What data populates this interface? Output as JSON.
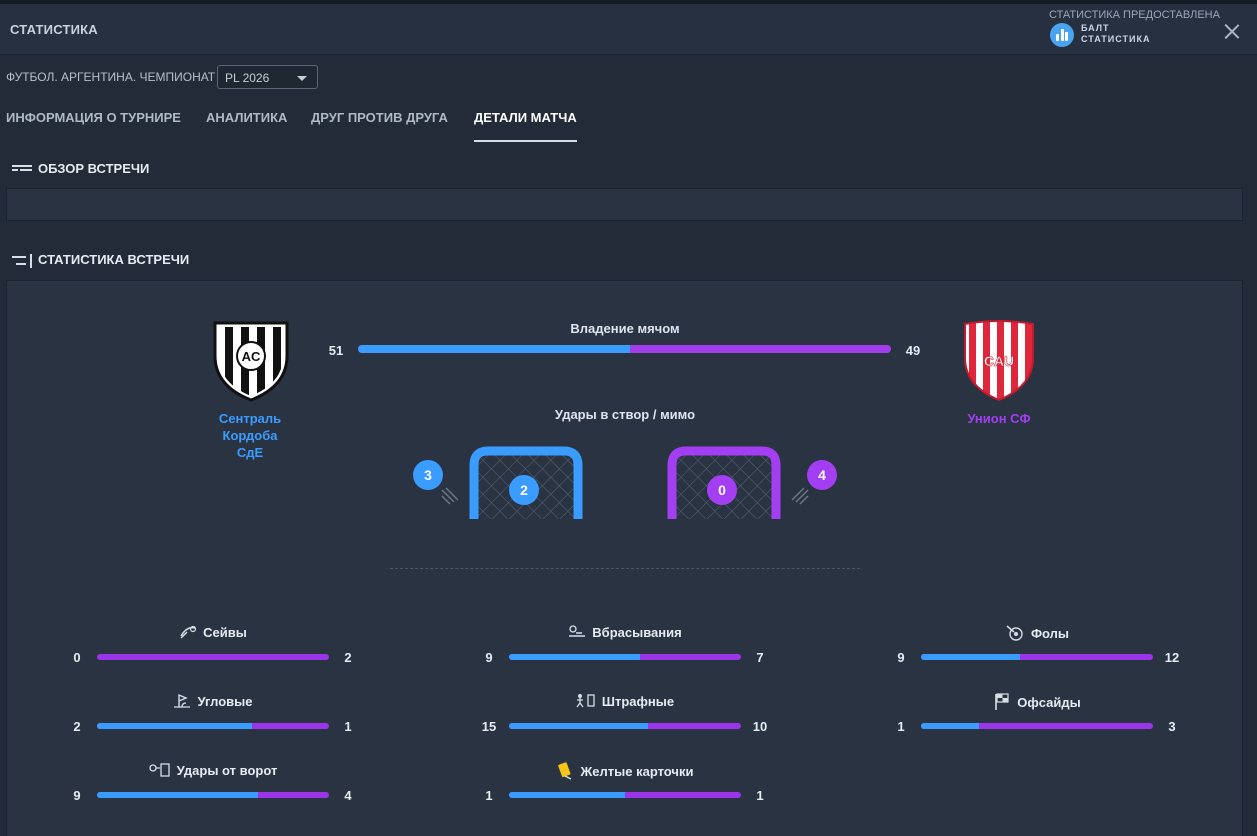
{
  "window": {
    "title": "СТАТИСТИКА",
    "close_icon": "close-icon"
  },
  "provider": {
    "caption": "СТАТИСТИКА ПРЕДОСТАВЛЕНА",
    "name": "БАЛТ СТАТИСТИКА"
  },
  "filter": {
    "label": "ФУТБОЛ. АРГЕНТИНА. ЧЕМПИОНАТ",
    "season_value": "PL 2026"
  },
  "tabs": [
    {
      "label": "ИНФОРМАЦИЯ О ТУРНИРЕ",
      "active": false
    },
    {
      "label": "АНАЛИТИКА",
      "active": false
    },
    {
      "label": "ДРУГ ПРОТИВ ДРУГА",
      "active": false
    },
    {
      "label": "ДЕТАЛИ МАТЧА",
      "active": true
    }
  ],
  "sections": {
    "overview": "ОБЗОР ВСТРЕЧИ",
    "stats": "СТАТИСТИКА ВСТРЕЧИ"
  },
  "colors": {
    "home": "#3b9cff",
    "away": "#a43ef2",
    "background": "#232b38",
    "panel": "#2a3341"
  },
  "home": {
    "name_lines": [
      "Сентраль",
      "Кордоба",
      "СдЕ"
    ],
    "crest_letters": "AC"
  },
  "away": {
    "name": "Унион СФ",
    "crest_letters": "CAU"
  },
  "possession": {
    "label": "Владение мячом",
    "home": 51,
    "away": 49
  },
  "shots": {
    "label": "Удары в створ / мимо",
    "home_on": 2,
    "home_off": 3,
    "away_on": 0,
    "away_off": 4
  },
  "stats": [
    {
      "label": "Сейвы",
      "icon": "save-icon",
      "home": "0",
      "away": "2",
      "home_share": 0.0
    },
    {
      "label": "Вбрасывания",
      "icon": "throw-in-icon",
      "home": "9",
      "away": "7",
      "home_share": 0.5625
    },
    {
      "label": "Фолы",
      "icon": "foul-icon",
      "home": "9",
      "away": "12",
      "home_share": 0.4286
    },
    {
      "label": "Угловые",
      "icon": "corner-icon",
      "home": "2",
      "away": "1",
      "home_share": 0.6667
    },
    {
      "label": "Штрафные",
      "icon": "free-kick-icon",
      "home": "15",
      "away": "10",
      "home_share": 0.6
    },
    {
      "label": "Офсайды",
      "icon": "offside-flag-icon",
      "home": "1",
      "away": "3",
      "home_share": 0.25
    },
    {
      "label": "Удары от ворот",
      "icon": "goal-kick-icon",
      "home": "9",
      "away": "4",
      "home_share": 0.6923
    },
    {
      "label": "Желтые карточки",
      "icon": "yellow-card-icon",
      "home": "1",
      "away": "1",
      "home_share": 0.5
    }
  ]
}
